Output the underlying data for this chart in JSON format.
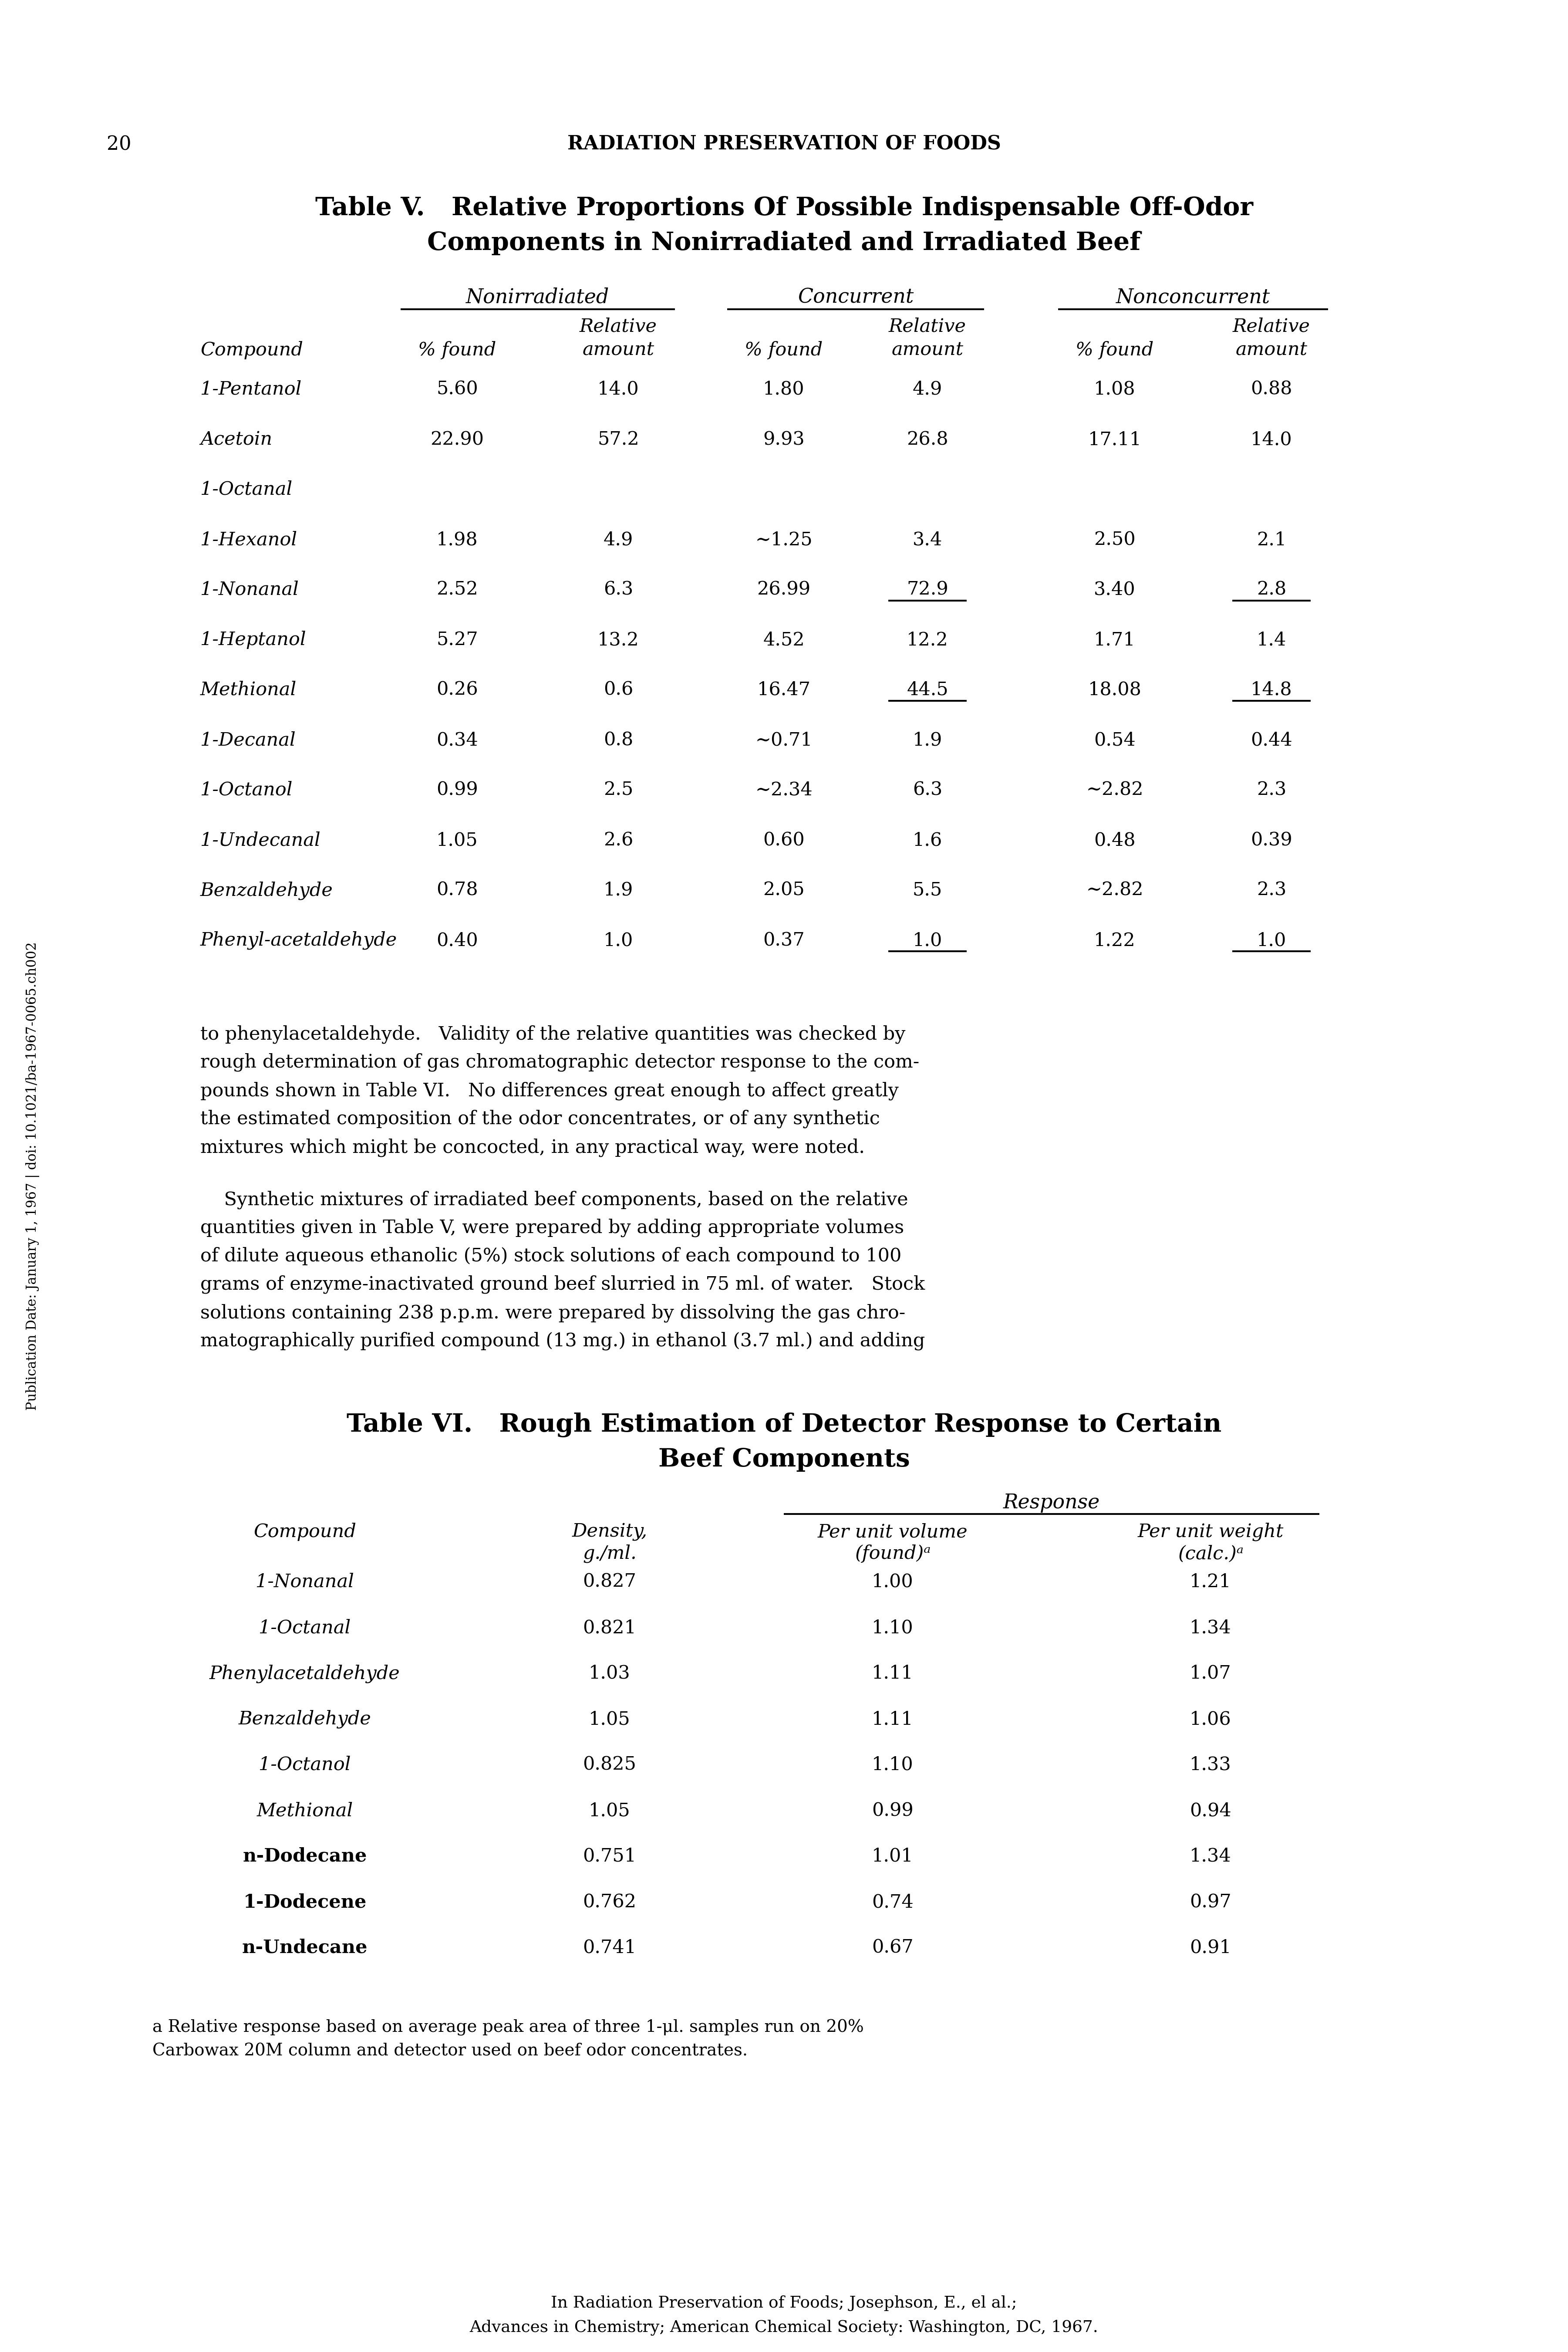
{
  "page_number": "20",
  "page_header": "RADIATION PRESERVATION OF FOODS",
  "table5": {
    "title_line1": "Table V.   Relative Proportions Of Possible Indispensable Off-Odor",
    "title_line2": "Components in Nonirradiated and Irradiated Beef",
    "col_groups": [
      "Nonirradiated",
      "Concurrent",
      "Nonconcurrent"
    ],
    "rows": [
      [
        "1-Pentanol",
        "5.60",
        "14.0",
        "1.80",
        "4.9",
        "1.08",
        "0.88"
      ],
      [
        "Acetoin",
        "22.90",
        "57.2",
        "9.93",
        "26.8",
        "17.11",
        "14.0"
      ],
      [
        "1-Octanal",
        "",
        "",
        "",
        "",
        "",
        ""
      ],
      [
        "1-Hexanol",
        "1.98",
        "4.9",
        "~1.25",
        "3.4",
        "2.50",
        "2.1"
      ],
      [
        "1-Nonanal",
        "2.52",
        "6.3",
        "26.99",
        "72.9",
        "3.40",
        "2.8"
      ],
      [
        "1-Heptanol",
        "5.27",
        "13.2",
        "4.52",
        "12.2",
        "1.71",
        "1.4"
      ],
      [
        "Methional",
        "0.26",
        "0.6",
        "16.47",
        "44.5",
        "18.08",
        "14.8"
      ],
      [
        "1-Decanal",
        "0.34",
        "0.8",
        "~0.71",
        "1.9",
        "0.54",
        "0.44"
      ],
      [
        "1-Octanol",
        "0.99",
        "2.5",
        "~2.34",
        "6.3",
        "~2.82",
        "2.3"
      ],
      [
        "1-Undecanal",
        "1.05",
        "2.6",
        "0.60",
        "1.6",
        "0.48",
        "0.39"
      ],
      [
        "Benzaldehyde",
        "0.78",
        "1.9",
        "2.05",
        "5.5",
        "~2.82",
        "2.3"
      ],
      [
        "Phenyl-acetaldehyde",
        "0.40",
        "1.0",
        "0.37",
        "1.0",
        "1.22",
        "1.0"
      ]
    ],
    "underline_nonanal_co_rel": true,
    "underline_nonanal_nc_rel": true,
    "underline_methional_co_rel": true,
    "underline_methional_nc_rel": true,
    "underline_phenyl_co_rel": true,
    "underline_phenyl_nc_rel": true
  },
  "body_text_para1": [
    "to phenylacetaldehyde.   Validity of the relative quantities was checked by",
    "rough determination of gas chromatographic detector response to the com-",
    "pounds shown in Table VI.   No differences great enough to affect greatly",
    "the estimated composition of the odor concentrates, or of any synthetic",
    "mixtures which might be concocted, in any practical way, were noted."
  ],
  "body_text_para2": [
    "    Synthetic mixtures of irradiated beef components, based on the relative",
    "quantities given in Table V, were prepared by adding appropriate volumes",
    "of dilute aqueous ethanolic (5%) stock solutions of each compound to 100",
    "grams of enzyme-inactivated ground beef slurried in 75 ml. of water.   Stock",
    "solutions containing 238 p.p.m. were prepared by dissolving the gas chro-",
    "matographically purified compound (13 mg.) in ethanol (3.7 ml.) and adding"
  ],
  "table6": {
    "title_line1": "Table VI.   Rough Estimation of Detector Response to Certain",
    "title_line2": "Beef Components",
    "col_group": "Response",
    "rows": [
      [
        "1-Nonanal",
        "0.827",
        "1.00",
        "1.21",
        false
      ],
      [
        "1-Octanal",
        "0.821",
        "1.10",
        "1.34",
        false
      ],
      [
        "Phenylacetaldehyde",
        "1.03",
        "1.11",
        "1.07",
        false
      ],
      [
        "Benzaldehyde",
        "1.05",
        "1.11",
        "1.06",
        false
      ],
      [
        "1-Octanol",
        "0.825",
        "1.10",
        "1.33",
        false
      ],
      [
        "Methional",
        "1.05",
        "0.99",
        "0.94",
        false
      ],
      [
        "n-Dodecane",
        "0.751",
        "1.01",
        "1.34",
        true
      ],
      [
        "1-Dodecene",
        "0.762",
        "0.74",
        "0.97",
        true
      ],
      [
        "n-Undecane",
        "0.741",
        "0.67",
        "0.91",
        true
      ]
    ]
  },
  "footnote_line1": "a Relative response based on average peak area of three 1-μl. samples run on 20%",
  "footnote_line2": "Carbowax 20M column and detector used on beef odor concentrates.",
  "footer_line1": "In Radiation Preservation of Foods; Josephson, E., el al.;",
  "footer_line2": "Advances in Chemistry; American Chemical Society: Washington, DC, 1967.",
  "sidebar": "Publication Date: January 1, 1967 | doi: 10.1021/ba-1967-0065.ch002"
}
